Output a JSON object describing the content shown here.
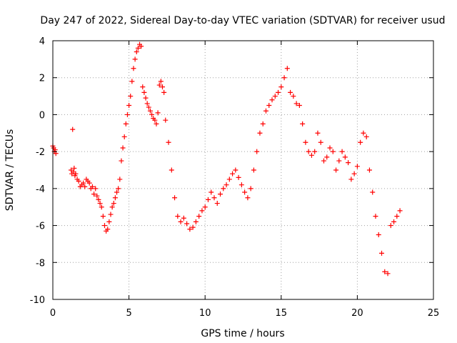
{
  "chart_data": {
    "type": "scatter",
    "title": "Day 247 of 2022, Sidereal Day-to-day VTEC variation (SDTVAR) for receiver usud",
    "xlabel": "GPS time / hours",
    "ylabel": "SDTVAR / TECUs",
    "xlim": [
      0,
      25
    ],
    "ylim": [
      -10,
      4
    ],
    "xticks": [
      0,
      5,
      10,
      15,
      20,
      25
    ],
    "yticks": [
      -10,
      -8,
      -6,
      -4,
      -2,
      0,
      2,
      4
    ],
    "grid": true,
    "marker": "+",
    "series_color": "#ff0000",
    "series": [
      {
        "name": "SDTVAR",
        "x": [
          0.0,
          0.05,
          0.1,
          0.15,
          0.2,
          1.2,
          1.25,
          1.3,
          1.35,
          1.4,
          1.45,
          1.5,
          1.6,
          1.7,
          1.8,
          1.9,
          2.0,
          2.1,
          2.2,
          2.3,
          2.4,
          2.5,
          2.6,
          2.7,
          2.8,
          2.9,
          3.0,
          3.1,
          3.2,
          3.3,
          3.4,
          3.5,
          3.6,
          3.7,
          3.8,
          3.9,
          4.0,
          4.1,
          4.2,
          4.3,
          4.4,
          4.5,
          4.6,
          4.7,
          4.8,
          4.9,
          5.0,
          5.1,
          5.2,
          5.3,
          5.4,
          5.5,
          5.6,
          5.7,
          5.8,
          5.9,
          6.0,
          6.1,
          6.2,
          6.3,
          6.4,
          6.5,
          6.6,
          6.7,
          6.8,
          6.9,
          7.0,
          7.1,
          7.2,
          7.3,
          7.4,
          7.6,
          7.8,
          8.0,
          8.2,
          8.4,
          8.6,
          8.8,
          9.0,
          9.2,
          9.4,
          9.6,
          9.8,
          10.0,
          10.2,
          10.4,
          10.6,
          10.8,
          11.0,
          11.2,
          11.4,
          11.6,
          11.8,
          12.0,
          12.2,
          12.4,
          12.6,
          12.8,
          13.0,
          13.2,
          13.4,
          13.6,
          13.8,
          14.0,
          14.2,
          14.4,
          14.6,
          14.8,
          15.0,
          15.2,
          15.4,
          15.6,
          15.8,
          16.0,
          16.2,
          16.4,
          16.6,
          16.8,
          17.0,
          17.2,
          17.4,
          17.6,
          17.8,
          18.0,
          18.2,
          18.4,
          18.6,
          18.8,
          19.0,
          19.2,
          19.4,
          19.6,
          19.8,
          20.0,
          20.2,
          20.4,
          20.6,
          20.8,
          21.0,
          21.2,
          21.4,
          21.6,
          21.8,
          22.0,
          22.2,
          22.4,
          22.6,
          22.8
        ],
        "y": [
          -1.7,
          -1.8,
          -2.0,
          -1.9,
          -2.1,
          -3.0,
          -3.2,
          -0.8,
          -3.1,
          -2.9,
          -3.3,
          -3.2,
          -3.5,
          -3.6,
          -3.9,
          -3.8,
          -3.7,
          -3.9,
          -3.5,
          -3.6,
          -3.7,
          -4.0,
          -3.9,
          -4.3,
          -4.0,
          -4.4,
          -4.6,
          -4.8,
          -5.0,
          -5.5,
          -6.0,
          -6.3,
          -6.2,
          -5.8,
          -5.4,
          -5.0,
          -4.8,
          -4.5,
          -4.2,
          -4.0,
          -3.5,
          -2.5,
          -1.8,
          -1.2,
          -0.5,
          0.0,
          0.5,
          1.0,
          1.8,
          2.5,
          3.0,
          3.4,
          3.6,
          3.8,
          3.7,
          1.5,
          1.2,
          0.9,
          0.6,
          0.4,
          0.2,
          0.0,
          -0.2,
          -0.3,
          -0.5,
          0.1,
          1.6,
          1.8,
          1.5,
          1.2,
          -0.3,
          -1.5,
          -3.0,
          -4.5,
          -5.5,
          -5.8,
          -5.6,
          -5.9,
          -6.2,
          -6.1,
          -5.8,
          -5.5,
          -5.2,
          -5.0,
          -4.6,
          -4.2,
          -4.5,
          -4.8,
          -4.3,
          -4.0,
          -3.8,
          -3.5,
          -3.2,
          -3.0,
          -3.4,
          -3.8,
          -4.2,
          -4.5,
          -4.0,
          -3.0,
          -2.0,
          -1.0,
          -0.5,
          0.2,
          0.5,
          0.8,
          1.0,
          1.2,
          1.5,
          2.0,
          2.5,
          1.2,
          1.0,
          0.6,
          0.5,
          -0.5,
          -1.5,
          -2.0,
          -2.2,
          -2.0,
          -1.0,
          -1.5,
          -2.5,
          -2.3,
          -1.8,
          -2.0,
          -3.0,
          -2.5,
          -2.0,
          -2.3,
          -2.6,
          -3.5,
          -3.2,
          -2.8,
          -1.5,
          -1.0,
          -1.2,
          -3.0,
          -4.2,
          -5.5,
          -6.5,
          -7.5,
          -8.5,
          -8.6,
          -6.0,
          -5.8,
          -5.5,
          -5.2
        ]
      }
    ]
  }
}
